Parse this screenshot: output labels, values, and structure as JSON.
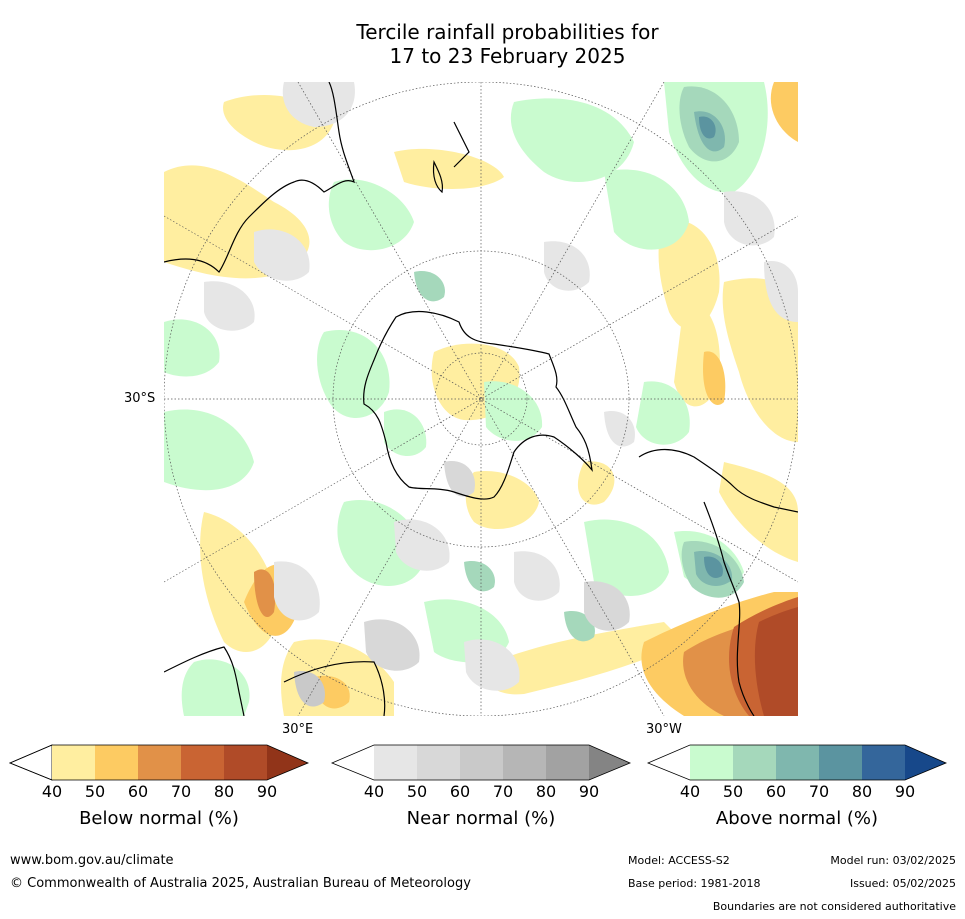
{
  "title_line1": "Tercile rainfall probabilities for",
  "title_line2": "17 to 23 February 2025",
  "map": {
    "lat_label": "30°S",
    "lon_label_east": "30°E",
    "lon_label_west": "30°W"
  },
  "colorbars": [
    {
      "title": "Below normal (%)",
      "ticks": [
        "40",
        "50",
        "60",
        "70",
        "80",
        "90"
      ],
      "colors": [
        "#ffffff",
        "#ffeea0",
        "#fdcb62",
        "#e19148",
        "#c96433",
        "#b04b28",
        "#913419"
      ]
    },
    {
      "title": "Near normal (%)",
      "ticks": [
        "40",
        "50",
        "60",
        "70",
        "80",
        "90"
      ],
      "colors": [
        "#ffffff",
        "#e6e6e6",
        "#d8d8d8",
        "#c9c9c9",
        "#b6b6b6",
        "#a2a2a2",
        "#848484"
      ]
    },
    {
      "title": "Above normal (%)",
      "ticks": [
        "40",
        "50",
        "60",
        "70",
        "80",
        "90"
      ],
      "colors": [
        "#ffffff",
        "#c9fbcf",
        "#a5d8bb",
        "#7fb7ae",
        "#5b94a0",
        "#34669b",
        "#17488a"
      ]
    }
  ],
  "footer": {
    "url": "www.bom.gov.au/climate",
    "copyright": "© Commonwealth of Australia 2025, Australian Bureau of Meteorology",
    "model": "Model: ACCESS-S2",
    "model_run": "Model run: 03/02/2025",
    "base_period": "Base period: 1981-2018",
    "issued": "Issued: 05/02/2025",
    "disclaimer": "Boundaries are not considered authoritative"
  }
}
